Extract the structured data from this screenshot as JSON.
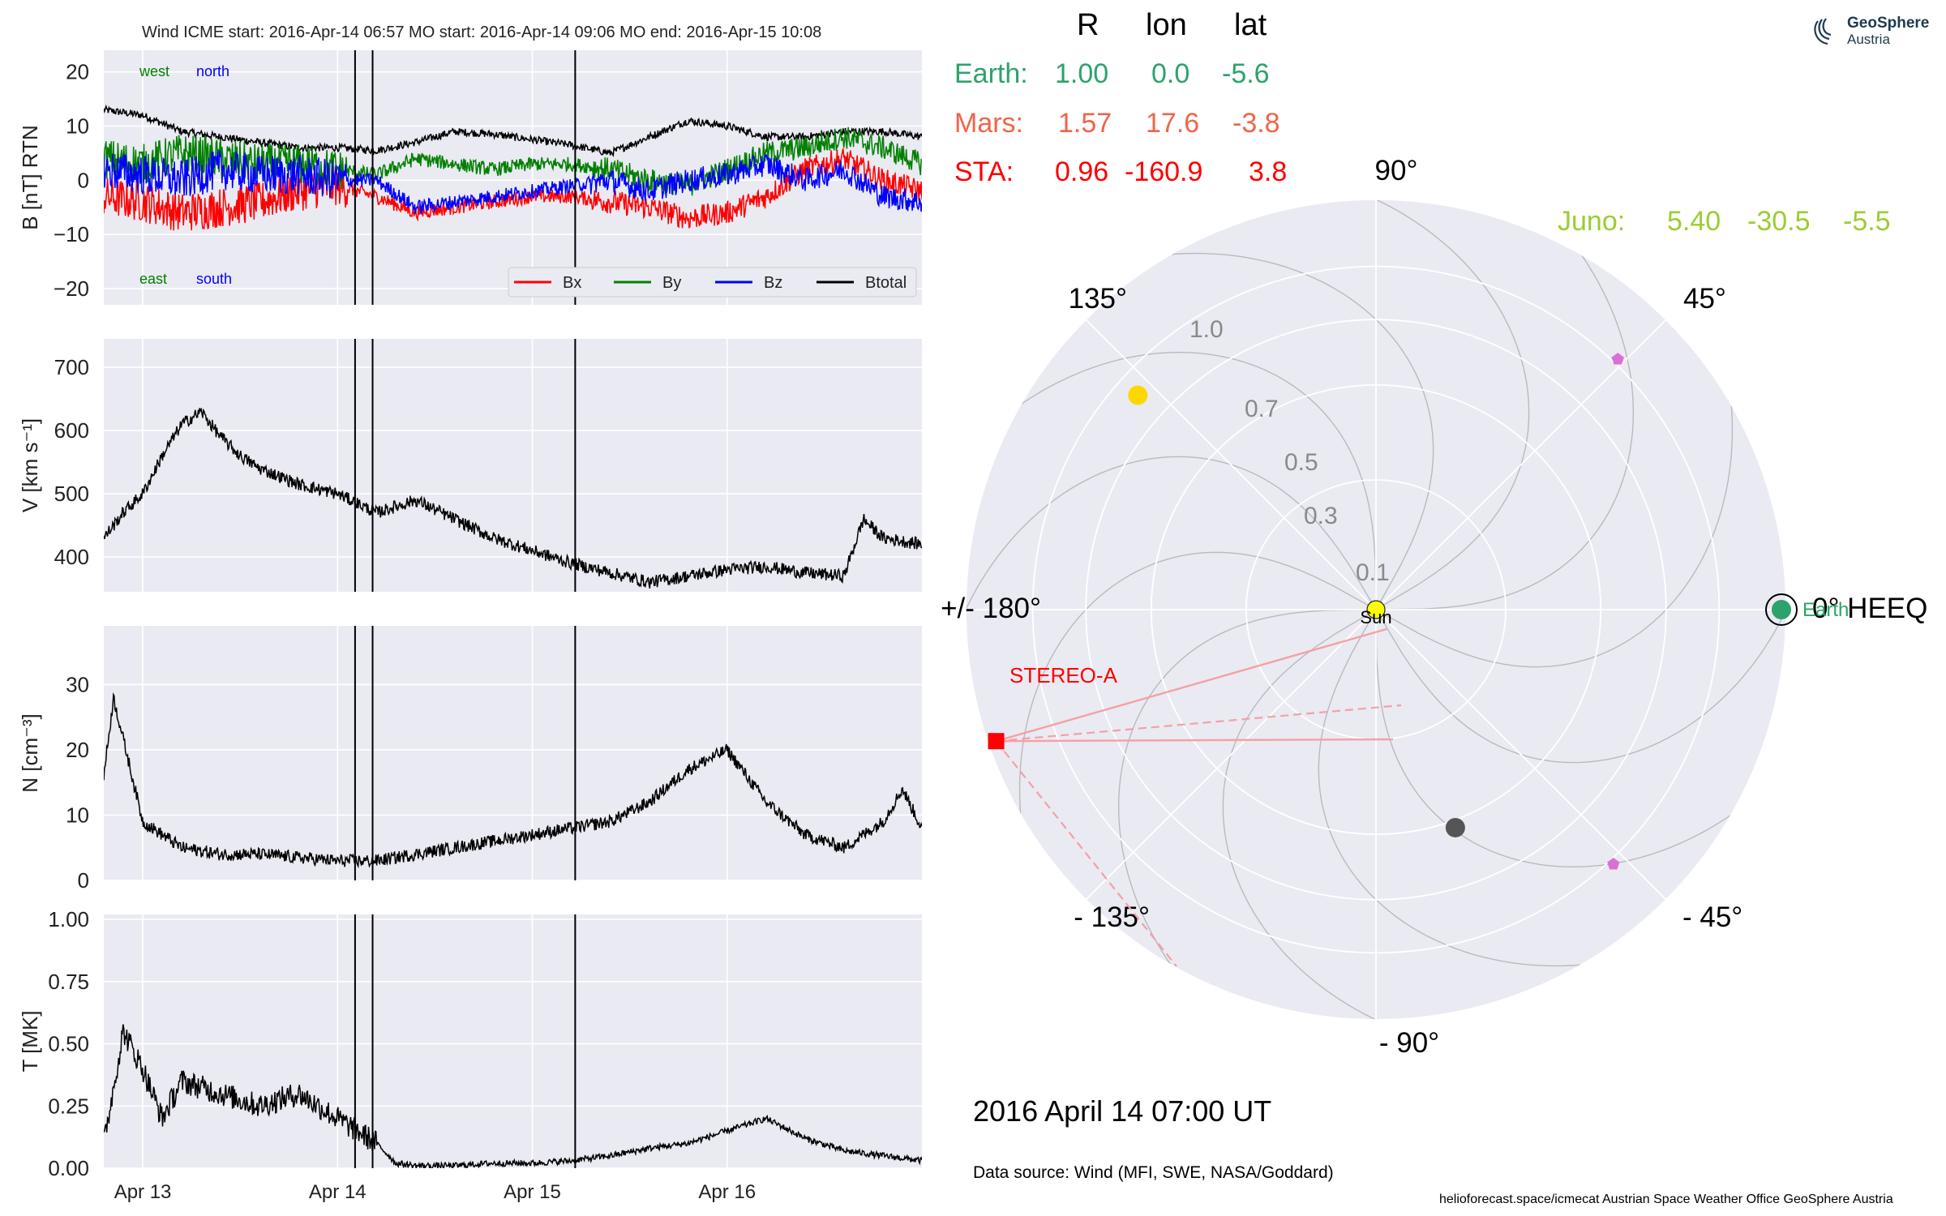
{
  "header": {
    "text": "Wind    ICME start: 2016-Apr-14 06:57   MO start: 2016-Apr-14 09:06   MO end: 2016-Apr-15 10:08"
  },
  "logo": {
    "line1": "GeoSphere",
    "line2": "Austria"
  },
  "timestamp": "2016 April 14  07:00 UT",
  "data_source": "Data source: Wind (MFI, SWE, NASA/Goddard)",
  "footer": "helioforecast.space/icmecat   Austrian Space Weather Office   GeoSphere Austria",
  "position_table": {
    "headers": [
      "R",
      "lon",
      "lat"
    ],
    "rows": [
      {
        "name": "Earth:",
        "R": "1.00",
        "lon": "0.0",
        "lat": "-5.6",
        "color": "#2ca36b"
      },
      {
        "name": "Mars:",
        "R": "1.57",
        "lon": "17.6",
        "lat": "-3.8",
        "color": "#f0644a"
      },
      {
        "name": "STA:",
        "R": "0.96",
        "lon": "-160.9",
        "lat": "3.8",
        "color": "#ff0000"
      },
      {
        "name": "Juno:",
        "R": "5.40",
        "lon": "-30.5",
        "lat": "-5.5",
        "color": "#9acd32"
      }
    ]
  },
  "chart_data": [
    {
      "type": "line",
      "panel": "magnetic field",
      "ylabel": "B [nT] RTN",
      "ylim": [
        -23,
        24
      ],
      "yticks": [
        -20,
        -10,
        0,
        10,
        20
      ],
      "ytick_labels": [
        "−20",
        "−10",
        "0",
        "10",
        "20"
      ],
      "annotations": {
        "west": "west",
        "north": "north",
        "east": "east",
        "south": "south"
      },
      "legend": {
        "placement": "lower-right",
        "entries": [
          "Bx",
          "By",
          "Bz",
          "Btotal"
        ]
      },
      "colors": {
        "Bx": "#ff0000",
        "By": "#008000",
        "Bz": "#0000ff",
        "Btotal": "#000000"
      },
      "x_days": [
        0,
        0.2,
        0.4,
        0.6,
        0.8,
        1.0,
        1.2,
        1.4,
        1.6,
        1.8,
        2.0,
        2.2,
        2.4,
        2.6,
        2.8,
        3.0,
        3.2,
        3.4,
        3.6,
        3.8,
        4.0,
        4.2
      ],
      "series": [
        {
          "name": "Btotal",
          "values": [
            13,
            12,
            9,
            8,
            7,
            6,
            6,
            5.5,
            7,
            9,
            8.5,
            7.5,
            6.5,
            5,
            8,
            11,
            10,
            8,
            8,
            9,
            9,
            8
          ]
        },
        {
          "name": "Bx",
          "values": [
            -3,
            -4,
            -6,
            -5,
            -4,
            -2,
            -1,
            -3,
            -6,
            -5,
            -4,
            -3,
            -3,
            -4,
            -5,
            -7,
            -6,
            -3,
            2,
            4,
            0,
            -2
          ]
        },
        {
          "name": "By",
          "values": [
            4,
            3,
            5,
            4,
            3,
            3,
            2,
            1,
            4,
            3,
            2,
            3,
            3,
            2,
            0,
            -1,
            2,
            5,
            6,
            8,
            6,
            3
          ]
        },
        {
          "name": "Bz",
          "values": [
            2,
            1,
            0,
            2,
            1,
            1,
            0,
            0,
            -5,
            -4,
            -3,
            -2,
            -1,
            0,
            -2,
            0,
            1,
            3,
            0,
            2,
            -3,
            -4
          ]
        }
      ]
    },
    {
      "type": "line",
      "panel": "speed",
      "ylabel": "V [km s⁻¹]",
      "ylim": [
        345,
        745
      ],
      "yticks": [
        400,
        500,
        600,
        700
      ],
      "x_days": [
        0,
        0.1,
        0.2,
        0.3,
        0.4,
        0.5,
        0.6,
        0.7,
        0.8,
        1.0,
        1.2,
        1.4,
        1.6,
        1.8,
        2.0,
        2.2,
        2.4,
        2.6,
        2.8,
        3.0,
        3.2,
        3.4,
        3.6,
        3.8,
        3.9,
        4.0,
        4.2
      ],
      "series": [
        {
          "name": "V",
          "values": [
            430,
            470,
            500,
            560,
            610,
            630,
            590,
            560,
            540,
            515,
            500,
            470,
            490,
            460,
            430,
            410,
            390,
            375,
            360,
            370,
            380,
            385,
            375,
            370,
            460,
            430,
            420
          ]
        }
      ]
    },
    {
      "type": "line",
      "panel": "density",
      "ylabel": "N [cm⁻³]",
      "ylim": [
        0,
        39
      ],
      "yticks": [
        0,
        10,
        20,
        30
      ],
      "x_days": [
        0,
        0.05,
        0.2,
        0.4,
        0.6,
        0.8,
        1.0,
        1.2,
        1.4,
        1.6,
        1.8,
        2.0,
        2.2,
        2.4,
        2.6,
        2.8,
        3.0,
        3.2,
        3.4,
        3.6,
        3.8,
        4.0,
        4.1,
        4.2
      ],
      "series": [
        {
          "name": "N",
          "values": [
            16,
            28,
            9,
            5,
            4,
            4,
            3.5,
            3,
            3,
            4,
            5,
            6,
            7,
            8,
            9,
            12,
            17,
            20,
            12,
            7,
            5,
            9,
            14,
            8
          ]
        }
      ]
    },
    {
      "type": "line",
      "panel": "temperature",
      "ylabel": "T [MK]",
      "ylim": [
        0,
        1.02
      ],
      "yticks": [
        0,
        0.25,
        0.5,
        0.75,
        1.0
      ],
      "ytick_labels": [
        "0.00",
        "0.25",
        "0.50",
        "0.75",
        "1.00"
      ],
      "xtick_labels": [
        "Apr 13",
        "Apr 14",
        "Apr 15",
        "Apr 16"
      ],
      "x_days": [
        0,
        0.1,
        0.2,
        0.3,
        0.4,
        0.6,
        0.8,
        1.0,
        1.2,
        1.4,
        1.5,
        1.6,
        1.8,
        2.0,
        2.2,
        2.4,
        2.6,
        2.8,
        3.0,
        3.2,
        3.4,
        3.6,
        3.8,
        4.0,
        4.2
      ],
      "series": [
        {
          "name": "T",
          "values": [
            0.1,
            0.55,
            0.4,
            0.2,
            0.35,
            0.3,
            0.25,
            0.3,
            0.2,
            0.1,
            0.02,
            0.01,
            0.01,
            0.02,
            0.02,
            0.03,
            0.05,
            0.08,
            0.1,
            0.15,
            0.2,
            0.12,
            0.07,
            0.05,
            0.03
          ]
        }
      ]
    },
    {
      "type": "scatter",
      "panel": "polar position plot",
      "radial_tick_labels": [
        "0.1",
        "0.3",
        "0.5",
        "0.7",
        "1.0"
      ],
      "angle_labels": [
        "0° HEEQ",
        "45°",
        "90°",
        "135°",
        "+/- 180°",
        "- 135°",
        "- 90°",
        "- 45°"
      ],
      "event_lines_days": [
        1.29,
        1.38,
        2.42
      ],
      "bodies": [
        {
          "name": "Sun",
          "r": 0.0,
          "lon": 0,
          "color": "#ffff00"
        },
        {
          "name": "Earth",
          "r": 1.0,
          "lon": 0.0,
          "color": "#2ca36b"
        },
        {
          "name": "STEREO-A",
          "r": 0.96,
          "lon": -160.9,
          "color": "#ff0000"
        },
        {
          "name": "",
          "r": 0.61,
          "lon": 138,
          "color": "#ffd700"
        },
        {
          "name": "",
          "r": 0.32,
          "lon": -70,
          "color": "#555555"
        },
        {
          "name": "",
          "r": 0.72,
          "lon": 46,
          "color": "#da70d6"
        },
        {
          "name": "",
          "r": 0.72,
          "lon": -47,
          "color": "#da70d6"
        }
      ]
    }
  ]
}
